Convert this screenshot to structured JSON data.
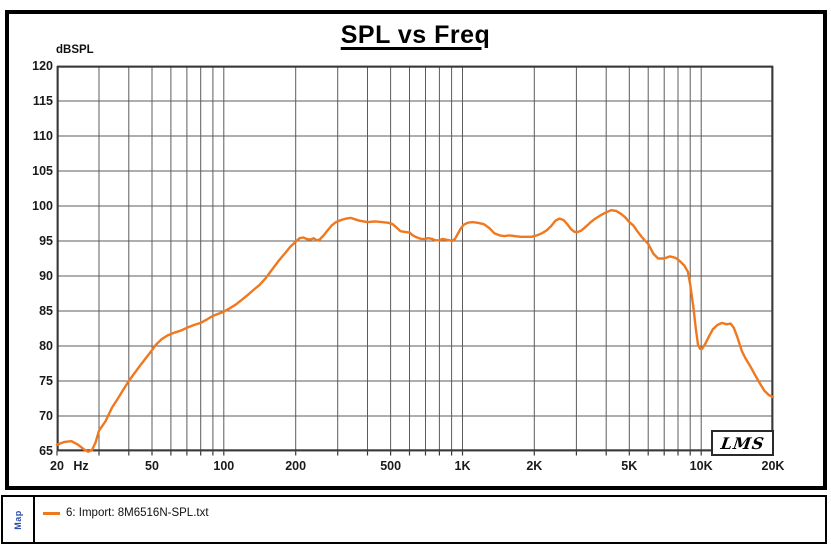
{
  "window": {
    "title": "SPL vs Freq",
    "y_unit_label": "dBSPL",
    "watermark": "LMS"
  },
  "legend": {
    "sidebar_label": "Map",
    "items": [
      {
        "swatch_color": "#F0781E",
        "label": "6: Import: 8M6516N-SPL.txt"
      }
    ]
  },
  "chart_data": {
    "type": "line",
    "title": "SPL vs Freq",
    "ylabel": "dBSPL",
    "xlabel": "Hz",
    "x_scale": "log",
    "xlim": [
      20,
      20000
    ],
    "ylim": [
      65,
      120
    ],
    "grid": true,
    "y_ticks": [
      120,
      115,
      110,
      105,
      100,
      95,
      90,
      85,
      80,
      75,
      70,
      65
    ],
    "x_ticks": [
      {
        "label": "20",
        "freq": 20
      },
      {
        "label": "50",
        "freq": 50
      },
      {
        "label": "100",
        "freq": 100
      },
      {
        "label": "200",
        "freq": 200
      },
      {
        "label": "500",
        "freq": 500
      },
      {
        "label": "1K",
        "freq": 1000
      },
      {
        "label": "2K",
        "freq": 2000
      },
      {
        "label": "5K",
        "freq": 5000
      },
      {
        "label": "10K",
        "freq": 10000
      },
      {
        "label": "20K",
        "freq": 20000
      }
    ],
    "x_unit": {
      "label": "Hz",
      "freq": 25.2
    },
    "x_gridlines": [
      20,
      30,
      40,
      50,
      60,
      70,
      80,
      90,
      100,
      200,
      300,
      400,
      500,
      600,
      700,
      800,
      900,
      1000,
      2000,
      3000,
      4000,
      5000,
      6000,
      7000,
      8000,
      9000,
      10000,
      20000
    ],
    "colors": {
      "grid": "#5c5c5c",
      "plot_border": "#383838",
      "series": "#F0781E",
      "tick_label": "#1a1a1a"
    },
    "series": [
      {
        "name": "6: Import: 8M6516N-SPL.txt",
        "color": "#F0781E",
        "points": [
          [
            20,
            65.9
          ],
          [
            21.5,
            66.3
          ],
          [
            23,
            66.4
          ],
          [
            24.5,
            65.9
          ],
          [
            26,
            65.2
          ],
          [
            27,
            64.9
          ],
          [
            28,
            65.1
          ],
          [
            29,
            66.2
          ],
          [
            30,
            67.9
          ],
          [
            32,
            69.3
          ],
          [
            34,
            71.2
          ],
          [
            36,
            72.5
          ],
          [
            38,
            73.8
          ],
          [
            40,
            75.0
          ],
          [
            42,
            76.0
          ],
          [
            45,
            77.4
          ],
          [
            48,
            78.6
          ],
          [
            50,
            79.4
          ],
          [
            52,
            80.2
          ],
          [
            55,
            81.0
          ],
          [
            58,
            81.5
          ],
          [
            62,
            81.9
          ],
          [
            66,
            82.2
          ],
          [
            70,
            82.6
          ],
          [
            75,
            83.0
          ],
          [
            80,
            83.3
          ],
          [
            85,
            83.8
          ],
          [
            90,
            84.3
          ],
          [
            95,
            84.6
          ],
          [
            100,
            84.9
          ],
          [
            106,
            85.4
          ],
          [
            112,
            85.9
          ],
          [
            118,
            86.5
          ],
          [
            125,
            87.2
          ],
          [
            133,
            88.0
          ],
          [
            141,
            88.7
          ],
          [
            150,
            89.7
          ],
          [
            160,
            91.0
          ],
          [
            170,
            92.2
          ],
          [
            180,
            93.2
          ],
          [
            190,
            94.2
          ],
          [
            200,
            94.9
          ],
          [
            208,
            95.4
          ],
          [
            215,
            95.5
          ],
          [
            222,
            95.3
          ],
          [
            230,
            95.2
          ],
          [
            238,
            95.4
          ],
          [
            245,
            95.1
          ],
          [
            252,
            95.2
          ],
          [
            262,
            95.8
          ],
          [
            272,
            96.5
          ],
          [
            283,
            97.2
          ],
          [
            295,
            97.7
          ],
          [
            310,
            98.0
          ],
          [
            325,
            98.2
          ],
          [
            340,
            98.3
          ],
          [
            355,
            98.1
          ],
          [
            370,
            97.9
          ],
          [
            385,
            97.8
          ],
          [
            400,
            97.7
          ],
          [
            430,
            97.8
          ],
          [
            460,
            97.7
          ],
          [
            490,
            97.6
          ],
          [
            510,
            97.4
          ],
          [
            530,
            96.9
          ],
          [
            550,
            96.4
          ],
          [
            575,
            96.3
          ],
          [
            600,
            96.2
          ],
          [
            620,
            95.8
          ],
          [
            645,
            95.5
          ],
          [
            670,
            95.3
          ],
          [
            695,
            95.3
          ],
          [
            720,
            95.4
          ],
          [
            745,
            95.3
          ],
          [
            770,
            95.1
          ],
          [
            800,
            95.1
          ],
          [
            825,
            95.3
          ],
          [
            850,
            95.2
          ],
          [
            880,
            95.1
          ],
          [
            905,
            95.0
          ],
          [
            930,
            95.3
          ],
          [
            955,
            96.0
          ],
          [
            980,
            96.7
          ],
          [
            1010,
            97.3
          ],
          [
            1050,
            97.6
          ],
          [
            1100,
            97.7
          ],
          [
            1160,
            97.6
          ],
          [
            1230,
            97.4
          ],
          [
            1300,
            96.8
          ],
          [
            1360,
            96.1
          ],
          [
            1430,
            95.8
          ],
          [
            1500,
            95.7
          ],
          [
            1570,
            95.8
          ],
          [
            1650,
            95.7
          ],
          [
            1750,
            95.6
          ],
          [
            1850,
            95.6
          ],
          [
            1950,
            95.6
          ],
          [
            2050,
            95.8
          ],
          [
            2150,
            96.1
          ],
          [
            2250,
            96.5
          ],
          [
            2350,
            97.1
          ],
          [
            2450,
            97.9
          ],
          [
            2550,
            98.2
          ],
          [
            2650,
            98.0
          ],
          [
            2750,
            97.4
          ],
          [
            2850,
            96.7
          ],
          [
            2950,
            96.3
          ],
          [
            3050,
            96.3
          ],
          [
            3150,
            96.5
          ],
          [
            3300,
            97.1
          ],
          [
            3450,
            97.7
          ],
          [
            3600,
            98.2
          ],
          [
            3800,
            98.7
          ],
          [
            4000,
            99.1
          ],
          [
            4200,
            99.4
          ],
          [
            4400,
            99.3
          ],
          [
            4600,
            98.9
          ],
          [
            4800,
            98.4
          ],
          [
            5000,
            97.7
          ],
          [
            5200,
            97.2
          ],
          [
            5400,
            96.4
          ],
          [
            5600,
            95.7
          ],
          [
            5800,
            95.1
          ],
          [
            6000,
            94.6
          ],
          [
            6300,
            93.2
          ],
          [
            6600,
            92.5
          ],
          [
            7000,
            92.5
          ],
          [
            7400,
            92.8
          ],
          [
            7800,
            92.6
          ],
          [
            8100,
            92.2
          ],
          [
            8500,
            91.5
          ],
          [
            8800,
            90.6
          ],
          [
            9000,
            88.8
          ],
          [
            9300,
            85.3
          ],
          [
            9500,
            82.5
          ],
          [
            9700,
            80.2
          ],
          [
            9900,
            79.6
          ],
          [
            10100,
            79.6
          ],
          [
            10400,
            80.3
          ],
          [
            10800,
            81.4
          ],
          [
            11200,
            82.4
          ],
          [
            11700,
            83.0
          ],
          [
            12200,
            83.3
          ],
          [
            12800,
            83.1
          ],
          [
            13300,
            83.2
          ],
          [
            13700,
            82.6
          ],
          [
            14200,
            81.2
          ],
          [
            14800,
            79.3
          ],
          [
            15300,
            78.3
          ],
          [
            16000,
            77.2
          ],
          [
            16800,
            75.9
          ],
          [
            17600,
            74.7
          ],
          [
            18400,
            73.6
          ],
          [
            19200,
            73.0
          ],
          [
            20000,
            72.7
          ]
        ]
      }
    ],
    "watermark": "LMS"
  }
}
